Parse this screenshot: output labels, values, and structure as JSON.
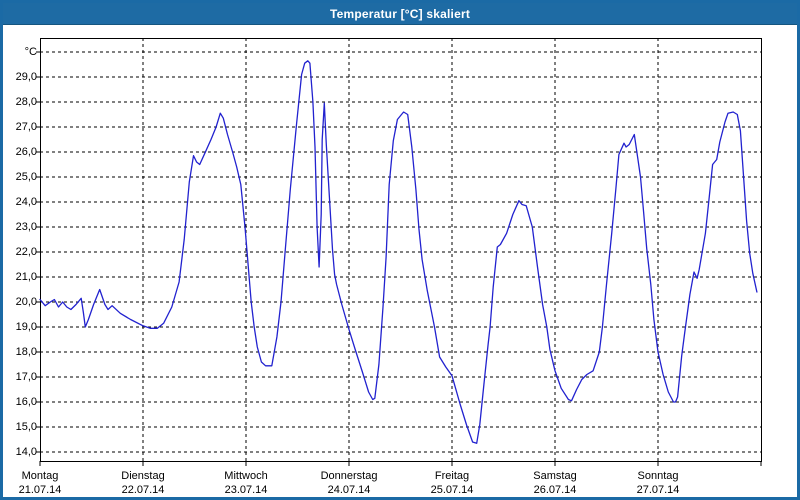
{
  "window": {
    "title": "Temperatur [°C] skaliert",
    "titlebar_color": "#1e6ba4",
    "border_color": "#1b6aa5",
    "background_color": "#ffffff"
  },
  "chart_data": {
    "type": "line",
    "title": "Temperatur [°C] skaliert",
    "xlabel": "",
    "ylabel": "°C",
    "grid": "dashed",
    "legend_position": "none",
    "line_color": "#2222cf",
    "grid_color": "#000000",
    "axis_color": "#000000",
    "ylim": [
      13.64,
      30.56
    ],
    "xlim_days": [
      0,
      7
    ],
    "y_axis": {
      "unit_label": "°C",
      "decimal_style": "comma",
      "ticks": [
        {
          "value": 30,
          "label": "°C"
        },
        {
          "value": 29,
          "label": "29,0"
        },
        {
          "value": 28,
          "label": "28,0"
        },
        {
          "value": 27,
          "label": "27,0"
        },
        {
          "value": 26,
          "label": "26,0"
        },
        {
          "value": 25,
          "label": "25,0"
        },
        {
          "value": 24,
          "label": "24,0"
        },
        {
          "value": 23,
          "label": "23,0"
        },
        {
          "value": 22,
          "label": "22,0"
        },
        {
          "value": 21,
          "label": "21,0"
        },
        {
          "value": 20,
          "label": "20,0"
        },
        {
          "value": 19,
          "label": "19,0"
        },
        {
          "value": 18,
          "label": "18,0"
        },
        {
          "value": 17,
          "label": "17,0"
        },
        {
          "value": 16,
          "label": "16,0"
        },
        {
          "value": 15,
          "label": "15,0"
        },
        {
          "value": 14,
          "label": "14,0"
        }
      ]
    },
    "x_axis": {
      "days": [
        {
          "name": "Montag",
          "date": "21.07.14"
        },
        {
          "name": "Dienstag",
          "date": "22.07.14"
        },
        {
          "name": "Mittwoch",
          "date": "23.07.14"
        },
        {
          "name": "Donnerstag",
          "date": "24.07.14"
        },
        {
          "name": "Freitag",
          "date": "25.07.14"
        },
        {
          "name": "Samstag",
          "date": "26.07.14"
        },
        {
          "name": "Sonntag",
          "date": "27.07.14"
        }
      ]
    },
    "series": [
      {
        "name": "Temperatur",
        "points": [
          [
            0.0,
            20.1
          ],
          [
            0.05,
            19.85
          ],
          [
            0.1,
            20.0
          ],
          [
            0.14,
            20.1
          ],
          [
            0.18,
            19.8
          ],
          [
            0.22,
            20.0
          ],
          [
            0.26,
            19.8
          ],
          [
            0.3,
            19.7
          ],
          [
            0.35,
            19.9
          ],
          [
            0.4,
            20.15
          ],
          [
            0.42,
            19.6
          ],
          [
            0.44,
            19.0
          ],
          [
            0.47,
            19.3
          ],
          [
            0.52,
            19.9
          ],
          [
            0.58,
            20.5
          ],
          [
            0.63,
            19.9
          ],
          [
            0.66,
            19.7
          ],
          [
            0.7,
            19.85
          ],
          [
            0.78,
            19.55
          ],
          [
            0.88,
            19.3
          ],
          [
            1.0,
            19.05
          ],
          [
            1.07,
            18.95
          ],
          [
            1.14,
            18.95
          ],
          [
            1.2,
            19.15
          ],
          [
            1.28,
            19.8
          ],
          [
            1.35,
            20.8
          ],
          [
            1.4,
            22.5
          ],
          [
            1.45,
            24.8
          ],
          [
            1.49,
            25.85
          ],
          [
            1.52,
            25.6
          ],
          [
            1.55,
            25.5
          ],
          [
            1.6,
            25.95
          ],
          [
            1.66,
            26.5
          ],
          [
            1.71,
            27.0
          ],
          [
            1.75,
            27.55
          ],
          [
            1.78,
            27.35
          ],
          [
            1.82,
            26.7
          ],
          [
            1.87,
            26.0
          ],
          [
            1.91,
            25.4
          ],
          [
            1.95,
            24.7
          ],
          [
            1.99,
            23.0
          ],
          [
            2.02,
            21.5
          ],
          [
            2.05,
            20.0
          ],
          [
            2.08,
            19.0
          ],
          [
            2.11,
            18.2
          ],
          [
            2.15,
            17.6
          ],
          [
            2.19,
            17.45
          ],
          [
            2.25,
            17.45
          ],
          [
            2.3,
            18.6
          ],
          [
            2.34,
            20.0
          ],
          [
            2.38,
            22.0
          ],
          [
            2.43,
            24.5
          ],
          [
            2.49,
            27.1
          ],
          [
            2.54,
            29.1
          ],
          [
            2.57,
            29.55
          ],
          [
            2.6,
            29.65
          ],
          [
            2.62,
            29.55
          ],
          [
            2.65,
            28.0
          ],
          [
            2.67,
            26.2
          ],
          [
            2.69,
            23.0
          ],
          [
            2.71,
            21.4
          ],
          [
            2.73,
            23.5
          ],
          [
            2.74,
            26.5
          ],
          [
            2.76,
            27.95
          ],
          [
            2.78,
            26.3
          ],
          [
            2.81,
            24.2
          ],
          [
            2.84,
            22.1
          ],
          [
            2.86,
            21.1
          ],
          [
            2.88,
            20.7
          ],
          [
            2.93,
            19.9
          ],
          [
            3.0,
            18.9
          ],
          [
            3.06,
            18.1
          ],
          [
            3.13,
            17.2
          ],
          [
            3.19,
            16.4
          ],
          [
            3.23,
            16.1
          ],
          [
            3.25,
            16.15
          ],
          [
            3.29,
            17.5
          ],
          [
            3.33,
            19.8
          ],
          [
            3.36,
            21.8
          ],
          [
            3.39,
            24.7
          ],
          [
            3.43,
            26.45
          ],
          [
            3.47,
            27.3
          ],
          [
            3.51,
            27.5
          ],
          [
            3.53,
            27.6
          ],
          [
            3.57,
            27.5
          ],
          [
            3.61,
            26.2
          ],
          [
            3.65,
            24.5
          ],
          [
            3.68,
            22.9
          ],
          [
            3.71,
            21.7
          ],
          [
            3.76,
            20.45
          ],
          [
            3.83,
            19.0
          ],
          [
            3.88,
            17.8
          ],
          [
            3.94,
            17.4
          ],
          [
            4.0,
            17.05
          ],
          [
            4.08,
            15.9
          ],
          [
            4.14,
            15.1
          ],
          [
            4.2,
            14.4
          ],
          [
            4.24,
            14.35
          ],
          [
            4.27,
            15.1
          ],
          [
            4.31,
            16.7
          ],
          [
            4.35,
            18.3
          ],
          [
            4.37,
            19.0
          ],
          [
            4.4,
            20.6
          ],
          [
            4.44,
            22.2
          ],
          [
            4.47,
            22.3
          ],
          [
            4.53,
            22.75
          ],
          [
            4.59,
            23.5
          ],
          [
            4.65,
            24.05
          ],
          [
            4.68,
            23.9
          ],
          [
            4.72,
            23.85
          ],
          [
            4.78,
            23.0
          ],
          [
            4.83,
            21.4
          ],
          [
            4.88,
            19.9
          ],
          [
            4.92,
            19.0
          ],
          [
            4.95,
            18.1
          ],
          [
            5.0,
            17.25
          ],
          [
            5.06,
            16.55
          ],
          [
            5.13,
            16.1
          ],
          [
            5.16,
            16.05
          ],
          [
            5.21,
            16.5
          ],
          [
            5.26,
            16.9
          ],
          [
            5.31,
            17.1
          ],
          [
            5.37,
            17.25
          ],
          [
            5.43,
            18.0
          ],
          [
            5.46,
            19.0
          ],
          [
            5.5,
            20.7
          ],
          [
            5.55,
            22.7
          ],
          [
            5.59,
            24.5
          ],
          [
            5.62,
            25.9
          ],
          [
            5.67,
            26.35
          ],
          [
            5.69,
            26.2
          ],
          [
            5.72,
            26.3
          ],
          [
            5.77,
            26.7
          ],
          [
            5.8,
            25.85
          ],
          [
            5.83,
            25.0
          ],
          [
            5.86,
            23.6
          ],
          [
            5.89,
            22.15
          ],
          [
            5.93,
            20.7
          ],
          [
            5.96,
            19.3
          ],
          [
            6.0,
            18.0
          ],
          [
            6.05,
            17.1
          ],
          [
            6.1,
            16.4
          ],
          [
            6.15,
            16.0
          ],
          [
            6.17,
            16.0
          ],
          [
            6.19,
            16.2
          ],
          [
            6.23,
            17.85
          ],
          [
            6.26,
            18.8
          ],
          [
            6.31,
            20.3
          ],
          [
            6.35,
            21.2
          ],
          [
            6.38,
            20.95
          ],
          [
            6.4,
            21.3
          ],
          [
            6.46,
            22.75
          ],
          [
            6.5,
            24.3
          ],
          [
            6.53,
            25.5
          ],
          [
            6.57,
            25.7
          ],
          [
            6.6,
            26.4
          ],
          [
            6.65,
            27.2
          ],
          [
            6.68,
            27.55
          ],
          [
            6.73,
            27.6
          ],
          [
            6.77,
            27.5
          ],
          [
            6.8,
            26.85
          ],
          [
            6.83,
            25.05
          ],
          [
            6.86,
            23.25
          ],
          [
            6.89,
            21.95
          ],
          [
            6.92,
            21.15
          ],
          [
            6.96,
            20.4
          ]
        ]
      }
    ]
  }
}
